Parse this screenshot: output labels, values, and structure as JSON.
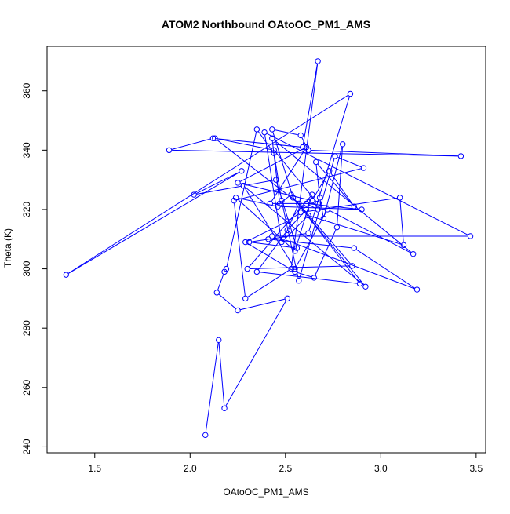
{
  "chart_data": {
    "type": "line",
    "title": "ATOM2 Northbound OAtoOC_PM1_AMS",
    "xlabel": "OAtoOC_PM1_AMS",
    "ylabel": "Theta (K)",
    "xlim": [
      1.25,
      3.55
    ],
    "ylim": [
      238,
      375
    ],
    "xticks": [
      1.5,
      2.0,
      2.5,
      3.0,
      3.5
    ],
    "yticks": [
      240,
      260,
      280,
      300,
      320,
      340,
      360
    ],
    "xtick_labels": [
      "1.5",
      "2.0",
      "2.5",
      "3.0",
      "3.5"
    ],
    "ytick_labels": [
      "240",
      "260",
      "280",
      "300",
      "320",
      "340",
      "360"
    ],
    "grid": false,
    "legend": "none",
    "series_color": "#0000ff",
    "markers": "open-circle",
    "series": [
      {
        "x": [
          2.08,
          2.15,
          2.18,
          2.51,
          2.25,
          2.14,
          2.18,
          2.19,
          2.35,
          2.44,
          2.48,
          2.57,
          2.76,
          2.91,
          2.23,
          2.29,
          2.53,
          2.67,
          2.59,
          2.12,
          1.89,
          3.42,
          2.62,
          2.58,
          2.43,
          2.54,
          2.92,
          2.28,
          2.45,
          2.56,
          2.31,
          2.62,
          2.84,
          1.35,
          2.27,
          2.02,
          2.28,
          2.55,
          2.72,
          3.17,
          2.43,
          2.47,
          2.53,
          2.89,
          2.35,
          2.51,
          2.61,
          2.13,
          2.44,
          2.67,
          2.42,
          2.61,
          2.25,
          2.64,
          2.73,
          2.86,
          2.66,
          2.68,
          2.7,
          2.8,
          2.77,
          2.65,
          2.55,
          2.29,
          2.51,
          2.58,
          3.1,
          3.12,
          2.62,
          2.48,
          2.39,
          3.47,
          2.43,
          2.41,
          2.86,
          3.19,
          2.49,
          2.57,
          2.85,
          2.3,
          2.64,
          2.55,
          2.24,
          2.46,
          2.9,
          2.61,
          2.67
        ],
        "y": [
          244,
          276,
          253,
          290,
          286,
          292,
          299,
          300,
          347,
          339,
          323,
          296,
          338,
          334,
          323,
          290,
          300,
          370,
          341,
          344,
          340,
          338,
          340,
          345,
          347,
          324,
          294,
          328,
          330,
          307,
          309,
          312,
          359,
          298,
          333,
          325,
          328,
          300,
          320,
          305,
          344,
          322,
          325,
          295,
          299,
          313,
          320,
          344,
          340,
          322,
          322,
          341,
          329,
          323,
          333,
          321,
          336,
          324,
          317,
          342,
          314,
          297,
          299,
          309,
          316,
          319,
          324,
          308,
          318,
          309,
          346,
          311,
          311,
          310,
          307,
          293,
          310,
          322,
          301,
          300,
          325,
          306,
          324,
          321,
          320,
          322,
          320
        ]
      }
    ]
  }
}
